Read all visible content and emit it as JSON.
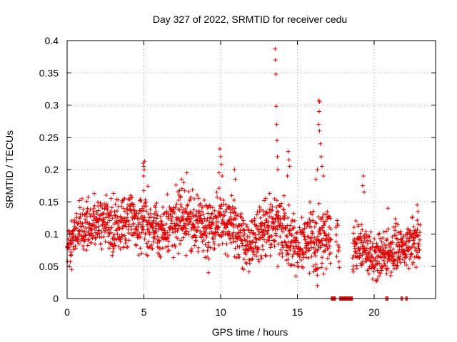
{
  "chart_data": {
    "type": "scatter",
    "title": "Day 327 of 2022, SRMTID for receiver cedu",
    "xlabel": "GPS time / hours",
    "ylabel": "SRMTID / TECUs",
    "xlim": [
      0,
      24
    ],
    "ylim": [
      0,
      0.4
    ],
    "x_ticks": [
      0,
      5,
      10,
      15,
      20
    ],
    "x_tick_labels": [
      "0",
      "5",
      "10",
      "15",
      "20"
    ],
    "y_ticks": [
      0,
      0.05,
      0.1,
      0.15,
      0.2,
      0.25,
      0.3,
      0.35,
      0.4
    ],
    "y_tick_labels": [
      "0",
      "0.05",
      "0.1",
      "0.15",
      "0.2",
      "0.25",
      "0.3",
      "0.35",
      "0.4"
    ],
    "grid": true,
    "marker": "plus",
    "series": [
      {
        "name": "SRMTID",
        "color": "#e00000",
        "profile": [
          {
            "x": 0.0,
            "y": 0.085,
            "spread": 0.025
          },
          {
            "x": 1.0,
            "y": 0.115,
            "spread": 0.03
          },
          {
            "x": 2.0,
            "y": 0.12,
            "spread": 0.03
          },
          {
            "x": 3.0,
            "y": 0.115,
            "spread": 0.03
          },
          {
            "x": 4.0,
            "y": 0.12,
            "spread": 0.035
          },
          {
            "x": 5.0,
            "y": 0.12,
            "spread": 0.035
          },
          {
            "x": 6.0,
            "y": 0.1,
            "spread": 0.03
          },
          {
            "x": 7.0,
            "y": 0.12,
            "spread": 0.035
          },
          {
            "x": 8.0,
            "y": 0.12,
            "spread": 0.035
          },
          {
            "x": 9.0,
            "y": 0.11,
            "spread": 0.035
          },
          {
            "x": 10.0,
            "y": 0.12,
            "spread": 0.035
          },
          {
            "x": 11.0,
            "y": 0.1,
            "spread": 0.035
          },
          {
            "x": 12.0,
            "y": 0.09,
            "spread": 0.03
          },
          {
            "x": 13.0,
            "y": 0.11,
            "spread": 0.035
          },
          {
            "x": 14.0,
            "y": 0.11,
            "spread": 0.04
          },
          {
            "x": 15.0,
            "y": 0.08,
            "spread": 0.03
          },
          {
            "x": 16.0,
            "y": 0.09,
            "spread": 0.04
          },
          {
            "x": 17.0,
            "y": 0.09,
            "spread": 0.04
          },
          {
            "x": 18.0,
            "y": 0.07,
            "spread": 0.02
          },
          {
            "x": 19.0,
            "y": 0.085,
            "spread": 0.03
          },
          {
            "x": 20.0,
            "y": 0.065,
            "spread": 0.025
          },
          {
            "x": 21.0,
            "y": 0.075,
            "spread": 0.025
          },
          {
            "x": 22.0,
            "y": 0.08,
            "spread": 0.025
          },
          {
            "x": 23.0,
            "y": 0.09,
            "spread": 0.025
          }
        ],
        "segments": [
          {
            "start": 0.0,
            "end": 17.2,
            "step": 0.012
          },
          {
            "start": 17.5,
            "end": 17.75,
            "step": 0.02
          },
          {
            "start": 18.6,
            "end": 23.0,
            "step": 0.012
          }
        ],
        "extra_points": [
          {
            "x": 4.95,
            "y": 0.21
          },
          {
            "x": 5.0,
            "y": 0.205
          },
          {
            "x": 5.05,
            "y": 0.213
          },
          {
            "x": 4.98,
            "y": 0.19
          },
          {
            "x": 5.02,
            "y": 0.2
          },
          {
            "x": 7.45,
            "y": 0.185
          },
          {
            "x": 7.8,
            "y": 0.195
          },
          {
            "x": 7.6,
            "y": 0.18
          },
          {
            "x": 9.95,
            "y": 0.232
          },
          {
            "x": 10.0,
            "y": 0.22
          },
          {
            "x": 10.05,
            "y": 0.208
          },
          {
            "x": 9.9,
            "y": 0.195
          },
          {
            "x": 10.1,
            "y": 0.19
          },
          {
            "x": 10.9,
            "y": 0.2
          },
          {
            "x": 10.95,
            "y": 0.185
          },
          {
            "x": 13.55,
            "y": 0.387
          },
          {
            "x": 13.57,
            "y": 0.37
          },
          {
            "x": 13.6,
            "y": 0.348
          },
          {
            "x": 13.62,
            "y": 0.298
          },
          {
            "x": 13.65,
            "y": 0.27
          },
          {
            "x": 13.67,
            "y": 0.245
          },
          {
            "x": 13.7,
            "y": 0.22
          },
          {
            "x": 13.72,
            "y": 0.2
          },
          {
            "x": 14.4,
            "y": 0.228
          },
          {
            "x": 14.45,
            "y": 0.215
          },
          {
            "x": 14.5,
            "y": 0.205
          },
          {
            "x": 14.35,
            "y": 0.19
          },
          {
            "x": 16.4,
            "y": 0.307
          },
          {
            "x": 16.45,
            "y": 0.305
          },
          {
            "x": 16.42,
            "y": 0.29
          },
          {
            "x": 16.38,
            "y": 0.27
          },
          {
            "x": 16.44,
            "y": 0.26
          },
          {
            "x": 16.5,
            "y": 0.24
          },
          {
            "x": 16.55,
            "y": 0.22
          },
          {
            "x": 16.6,
            "y": 0.205
          },
          {
            "x": 16.3,
            "y": 0.2
          },
          {
            "x": 16.2,
            "y": 0.185
          },
          {
            "x": 16.7,
            "y": 0.19
          },
          {
            "x": 16.3,
            "y": 0.02
          },
          {
            "x": 14.9,
            "y": 0.035
          },
          {
            "x": 0.3,
            "y": 0.045
          },
          {
            "x": 9.2,
            "y": 0.04
          },
          {
            "x": 19.3,
            "y": 0.19
          },
          {
            "x": 19.25,
            "y": 0.175
          },
          {
            "x": 19.35,
            "y": 0.165
          },
          {
            "x": 20.9,
            "y": 0.14
          },
          {
            "x": 22.8,
            "y": 0.145
          },
          {
            "x": 22.85,
            "y": 0.135
          },
          {
            "x": 20.2,
            "y": 0.03
          },
          {
            "x": 19.9,
            "y": 0.03
          }
        ],
        "gap_markers": [
          {
            "start": 17.2,
            "end": 17.5,
            "step": 0.04
          },
          {
            "start": 17.75,
            "end": 18.6,
            "step": 0.04
          },
          {
            "start": 20.75,
            "end": 20.95,
            "step": 0.05
          },
          {
            "start": 21.75,
            "end": 21.9,
            "step": 0.05
          },
          {
            "start": 22.05,
            "end": 22.2,
            "step": 0.05
          }
        ],
        "seed": 3272022
      }
    ]
  }
}
